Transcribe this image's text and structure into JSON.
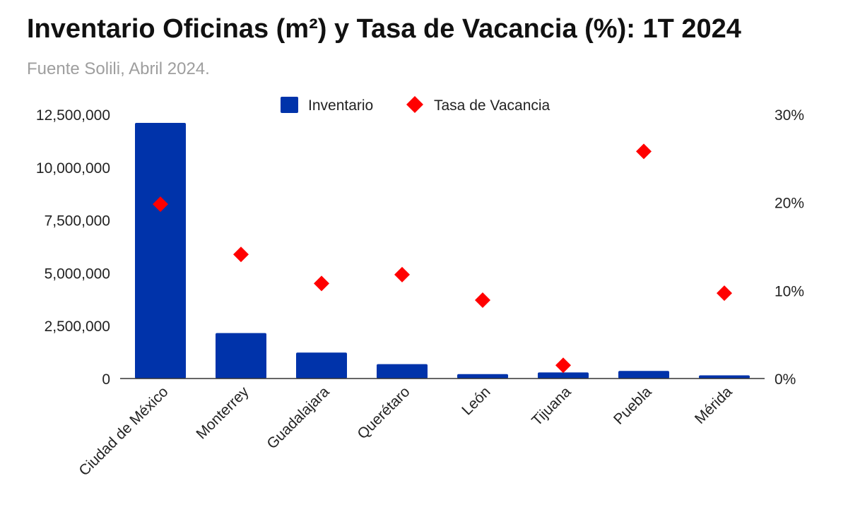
{
  "chart_data": {
    "type": "bar",
    "title": "Inventario Oficinas (m²) y Tasa de Vacancia (%): 1T 2024",
    "subtitle": "Fuente Solili, Abril 2024.",
    "categories": [
      "Ciudad de México",
      "Monterrey",
      "Guadalajara",
      "Querétaro",
      "León",
      "Tijuana",
      "Puebla",
      "Mérida"
    ],
    "series": [
      {
        "name": "Inventario",
        "type": "bar",
        "axis": "left",
        "color": "#0033aa",
        "values": [
          12100000,
          2150000,
          1230000,
          680000,
          210000,
          290000,
          360000,
          150000
        ]
      },
      {
        "name": "Tasa de Vacancia",
        "type": "scatter",
        "axis": "right",
        "color": "#ff0000",
        "marker": "diamond",
        "values": [
          19.8,
          14.1,
          10.8,
          11.8,
          8.9,
          1.5,
          25.8,
          9.7
        ]
      }
    ],
    "y_left": {
      "ticks": [
        "0",
        "2,500,000",
        "5,000,000",
        "7,500,000",
        "10,000,000",
        "12,500,000"
      ],
      "lim": [
        0,
        12500000
      ]
    },
    "y_right": {
      "ticks": [
        "0%",
        "10%",
        "20%",
        "30%"
      ],
      "lim": [
        0,
        30
      ]
    },
    "legend": "top-center",
    "grid": false
  }
}
